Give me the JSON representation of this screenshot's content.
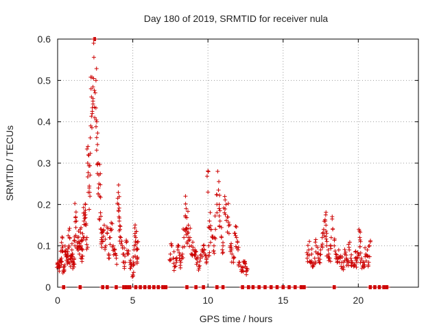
{
  "chart_data": {
    "type": "scatter",
    "title": "Day 180 of 2019, SRMTID for receiver nula",
    "xlabel": "GPS time / hours",
    "ylabel": "SRMTID / TECUs",
    "xlim": [
      0,
      24
    ],
    "ylim": [
      0,
      0.6
    ],
    "x_ticks": [
      0,
      5,
      10,
      15,
      20
    ],
    "x_tick_labels": [
      "0",
      "5",
      "10",
      "15",
      "20"
    ],
    "y_ticks": [
      0,
      0.1,
      0.2,
      0.3,
      0.4,
      0.5,
      0.6
    ],
    "y_tick_labels": [
      "0",
      "0.1",
      "0.2",
      "0.3",
      "0.4",
      "0.5",
      "0.6"
    ],
    "grid": true,
    "marker": "plus",
    "color": "#cc0000",
    "series": [
      {
        "name": "SRMTID",
        "points": [
          [
            0.0,
            0.055
          ],
          [
            0.05,
            0.05
          ],
          [
            0.1,
            0.06
          ],
          [
            0.15,
            0.05
          ],
          [
            0.2,
            0.065
          ],
          [
            0.25,
            0.07
          ],
          [
            0.3,
            0.095
          ],
          [
            0.35,
            0.1
          ],
          [
            0.4,
            0.04
          ],
          [
            0.45,
            0.05
          ],
          [
            0.5,
            0.085
          ],
          [
            0.55,
            0.09
          ],
          [
            0.6,
            0.065
          ],
          [
            0.65,
            0.08
          ],
          [
            0.7,
            0.06
          ],
          [
            0.75,
            0.1
          ],
          [
            0.8,
            0.12
          ],
          [
            0.85,
            0.07
          ],
          [
            0.9,
            0.065
          ],
          [
            0.95,
            0.09
          ],
          [
            1.0,
            0.08
          ],
          [
            1.05,
            0.06
          ],
          [
            1.1,
            0.07
          ],
          [
            1.15,
            0.1
          ],
          [
            1.2,
            0.17
          ],
          [
            1.25,
            0.16
          ],
          [
            1.3,
            0.1
          ],
          [
            1.35,
            0.09
          ],
          [
            1.4,
            0.11
          ],
          [
            1.45,
            0.08
          ],
          [
            1.5,
            0.14
          ],
          [
            1.55,
            0.1
          ],
          [
            1.6,
            0.075
          ],
          [
            1.65,
            0.09
          ],
          [
            1.7,
            0.12
          ],
          [
            1.75,
            0.16
          ],
          [
            1.8,
            0.18
          ],
          [
            1.85,
            0.2
          ],
          [
            1.9,
            0.15
          ],
          [
            1.95,
            0.12
          ],
          [
            2.0,
            0.3
          ],
          [
            2.05,
            0.32
          ],
          [
            2.1,
            0.24
          ],
          [
            2.15,
            0.22
          ],
          [
            2.2,
            0.39
          ],
          [
            2.25,
            0.46
          ],
          [
            2.3,
            0.42
          ],
          [
            2.35,
            0.45
          ],
          [
            2.4,
            0.59
          ],
          [
            2.45,
            0.6
          ],
          [
            2.5,
            0.47
          ],
          [
            2.55,
            0.5
          ],
          [
            2.6,
            0.4
          ],
          [
            2.65,
            0.345
          ],
          [
            2.7,
            0.3
          ],
          [
            2.75,
            0.25
          ],
          [
            2.8,
            0.22
          ],
          [
            2.85,
            0.18
          ],
          [
            2.9,
            0.14
          ],
          [
            2.95,
            0.12
          ],
          [
            3.0,
            0.11
          ],
          [
            3.1,
            0.15
          ],
          [
            3.2,
            0.1
          ],
          [
            3.3,
            0.13
          ],
          [
            3.4,
            0.08
          ],
          [
            3.5,
            0.12
          ],
          [
            3.6,
            0.14
          ],
          [
            3.7,
            0.1
          ],
          [
            3.8,
            0.09
          ],
          [
            3.9,
            0.07
          ],
          [
            4.0,
            0.215
          ],
          [
            4.05,
            0.2
          ],
          [
            4.1,
            0.16
          ],
          [
            4.15,
            0.14
          ],
          [
            4.2,
            0.12
          ],
          [
            4.3,
            0.1
          ],
          [
            4.4,
            0.08
          ],
          [
            4.5,
            0.06
          ],
          [
            4.6,
            0.11
          ],
          [
            4.7,
            0.08
          ],
          [
            4.8,
            0.06
          ],
          [
            4.9,
            0.05
          ],
          [
            5.0,
            0.03
          ],
          [
            5.05,
            0.06
          ],
          [
            5.1,
            0.1
          ],
          [
            5.15,
            0.13
          ],
          [
            5.2,
            0.12
          ],
          [
            5.25,
            0.09
          ],
          [
            5.3,
            0.07
          ],
          [
            5.35,
            0.11
          ],
          [
            7.5,
            0.08
          ],
          [
            7.6,
            0.1
          ],
          [
            7.7,
            0.07
          ],
          [
            7.8,
            0.05
          ],
          [
            7.9,
            0.06
          ],
          [
            8.0,
            0.09
          ],
          [
            8.1,
            0.07
          ],
          [
            8.2,
            0.06
          ],
          [
            8.3,
            0.08
          ],
          [
            8.4,
            0.12
          ],
          [
            8.5,
            0.17
          ],
          [
            8.55,
            0.19
          ],
          [
            8.6,
            0.14
          ],
          [
            8.65,
            0.13
          ],
          [
            8.7,
            0.15
          ],
          [
            8.8,
            0.12
          ],
          [
            8.9,
            0.1
          ],
          [
            9.0,
            0.09
          ],
          [
            9.1,
            0.08
          ],
          [
            9.2,
            0.07
          ],
          [
            9.3,
            0.06
          ],
          [
            9.4,
            0.05
          ],
          [
            9.5,
            0.07
          ],
          [
            9.6,
            0.09
          ],
          [
            9.7,
            0.1
          ],
          [
            9.8,
            0.08
          ],
          [
            9.9,
            0.07
          ],
          [
            10.0,
            0.23
          ],
          [
            10.05,
            0.1
          ],
          [
            10.1,
            0.16
          ],
          [
            10.2,
            0.14
          ],
          [
            10.3,
            0.12
          ],
          [
            10.4,
            0.1
          ],
          [
            10.5,
            0.14
          ],
          [
            10.6,
            0.18
          ],
          [
            10.7,
            0.235
          ],
          [
            10.75,
            0.2
          ],
          [
            10.8,
            0.16
          ],
          [
            10.9,
            0.12
          ],
          [
            11.0,
            0.1
          ],
          [
            11.1,
            0.18
          ],
          [
            11.2,
            0.2
          ],
          [
            11.3,
            0.17
          ],
          [
            11.4,
            0.13
          ],
          [
            11.5,
            0.1
          ],
          [
            11.6,
            0.08
          ],
          [
            11.7,
            0.06
          ],
          [
            11.8,
            0.13
          ],
          [
            11.9,
            0.12
          ],
          [
            12.0,
            0.09
          ],
          [
            12.1,
            0.06
          ],
          [
            12.2,
            0.05
          ],
          [
            12.3,
            0.04
          ],
          [
            12.4,
            0.06
          ],
          [
            12.5,
            0.05
          ],
          [
            12.6,
            0.04
          ],
          [
            16.6,
            0.07
          ],
          [
            16.7,
            0.09
          ],
          [
            16.8,
            0.06
          ],
          [
            16.9,
            0.08
          ],
          [
            17.0,
            0.05
          ],
          [
            17.1,
            0.07
          ],
          [
            17.2,
            0.1
          ],
          [
            17.3,
            0.08
          ],
          [
            17.4,
            0.06
          ],
          [
            17.5,
            0.09
          ],
          [
            17.6,
            0.12
          ],
          [
            17.7,
            0.14
          ],
          [
            17.8,
            0.16
          ],
          [
            17.85,
            0.15
          ],
          [
            17.9,
            0.1
          ],
          [
            18.0,
            0.09
          ],
          [
            18.1,
            0.07
          ],
          [
            18.2,
            0.12
          ],
          [
            18.3,
            0.14
          ],
          [
            18.4,
            0.1
          ],
          [
            18.5,
            0.08
          ],
          [
            18.6,
            0.06
          ],
          [
            18.7,
            0.09
          ],
          [
            18.8,
            0.07
          ],
          [
            18.9,
            0.06
          ],
          [
            19.0,
            0.05
          ],
          [
            19.1,
            0.08
          ],
          [
            19.2,
            0.07
          ],
          [
            19.3,
            0.06
          ],
          [
            19.4,
            0.09
          ],
          [
            19.5,
            0.07
          ],
          [
            19.6,
            0.06
          ],
          [
            19.7,
            0.05
          ],
          [
            19.8,
            0.07
          ],
          [
            19.9,
            0.06
          ],
          [
            20.0,
            0.08
          ],
          [
            20.1,
            0.12
          ],
          [
            20.15,
            0.11
          ],
          [
            20.2,
            0.07
          ],
          [
            20.3,
            0.06
          ],
          [
            20.4,
            0.05
          ],
          [
            20.5,
            0.08
          ],
          [
            20.6,
            0.09
          ],
          [
            20.7,
            0.06
          ],
          [
            20.75,
            0.1
          ]
        ],
        "zero_points": [
          0.4,
          1.5,
          3.0,
          3.3,
          3.9,
          4.4,
          4.6,
          4.8,
          5.2,
          5.5,
          5.8,
          6.1,
          6.4,
          6.7,
          7.0,
          7.2,
          8.6,
          9.2,
          9.7,
          10.6,
          11.0,
          12.3,
          12.7,
          13.0,
          13.4,
          13.8,
          14.2,
          14.6,
          15.0,
          15.4,
          15.8,
          16.2,
          16.4,
          18.4,
          20.8,
          21.1,
          21.4,
          21.7,
          21.9
        ]
      }
    ]
  }
}
